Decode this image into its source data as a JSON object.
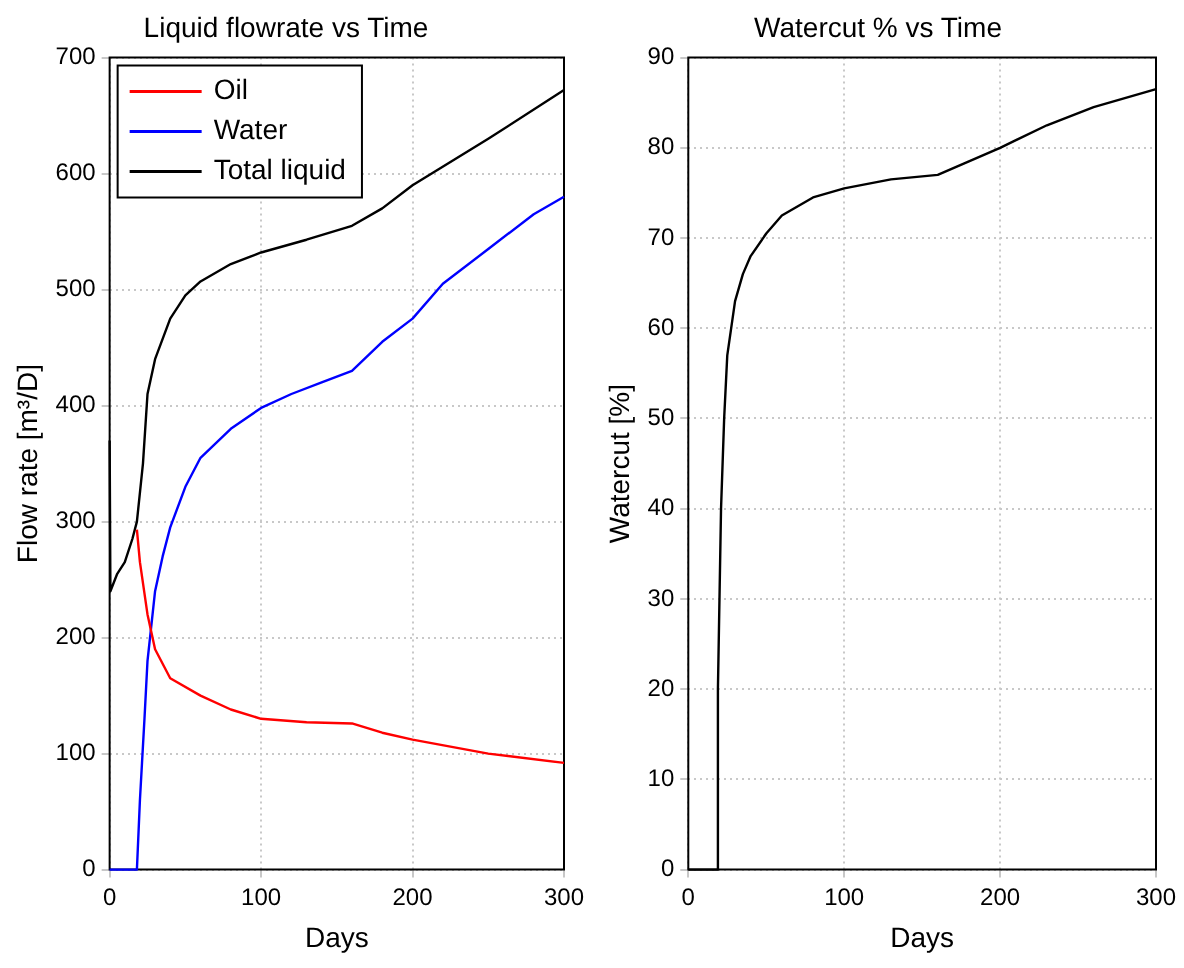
{
  "chart_data": [
    {
      "type": "line",
      "title": "Liquid flowrate vs Time",
      "xlabel": "Days",
      "ylabel": "Flow rate [m³/D]",
      "xlim": [
        0,
        300
      ],
      "xticks": [
        0,
        100,
        200,
        300
      ],
      "ylim": [
        0,
        700
      ],
      "yticks": [
        0,
        100,
        200,
        300,
        400,
        500,
        600,
        700
      ],
      "grid": true,
      "legend": "top left",
      "series": [
        {
          "name": "Oil",
          "color": "#ff0000",
          "x": [
            18,
            20,
            25,
            30,
            40,
            60,
            80,
            100,
            130,
            160,
            180,
            200,
            250,
            300
          ],
          "values": [
            293,
            265,
            220,
            190,
            165,
            150,
            138,
            130,
            127,
            126,
            118,
            112,
            100,
            92
          ]
        },
        {
          "name": "Water",
          "color": "#0000ff",
          "x": [
            0,
            18,
            20,
            23,
            25,
            30,
            35,
            40,
            50,
            60,
            80,
            100,
            120,
            140,
            160,
            180,
            200,
            220,
            250,
            280,
            300
          ],
          "values": [
            0,
            0,
            60,
            130,
            180,
            240,
            270,
            295,
            330,
            355,
            380,
            398,
            410,
            420,
            430,
            455,
            475,
            505,
            535,
            565,
            580
          ]
        },
        {
          "name": "Total liquid",
          "color": "#000000",
          "x": [
            0,
            0.5,
            5,
            10,
            15,
            18,
            22,
            25,
            30,
            40,
            50,
            60,
            80,
            100,
            130,
            160,
            180,
            200,
            250,
            300
          ],
          "values": [
            370,
            240,
            255,
            265,
            285,
            300,
            350,
            410,
            440,
            475,
            495,
            507,
            522,
            532,
            543,
            555,
            570,
            590,
            630,
            672
          ]
        }
      ]
    },
    {
      "type": "line",
      "title": "Watercut % vs Time",
      "xlabel": "Days",
      "ylabel": "Watercut [%]",
      "xlim": [
        0,
        300
      ],
      "xticks": [
        0,
        100,
        200,
        300
      ],
      "ylim": [
        0,
        90
      ],
      "yticks": [
        0,
        10,
        20,
        30,
        40,
        50,
        60,
        70,
        80,
        90
      ],
      "grid": true,
      "series": [
        {
          "color": "#000000",
          "x": [
            0,
            18,
            19,
            21,
            23,
            25,
            30,
            35,
            40,
            50,
            60,
            80,
            100,
            130,
            160,
            180,
            200,
            230,
            260,
            300
          ],
          "values": [
            0,
            0,
            20,
            40,
            50,
            57,
            63,
            66,
            68,
            70.5,
            72.5,
            74.5,
            75.5,
            76.5,
            77,
            78.5,
            80,
            82.5,
            84.5,
            86.5
          ]
        }
      ]
    }
  ]
}
